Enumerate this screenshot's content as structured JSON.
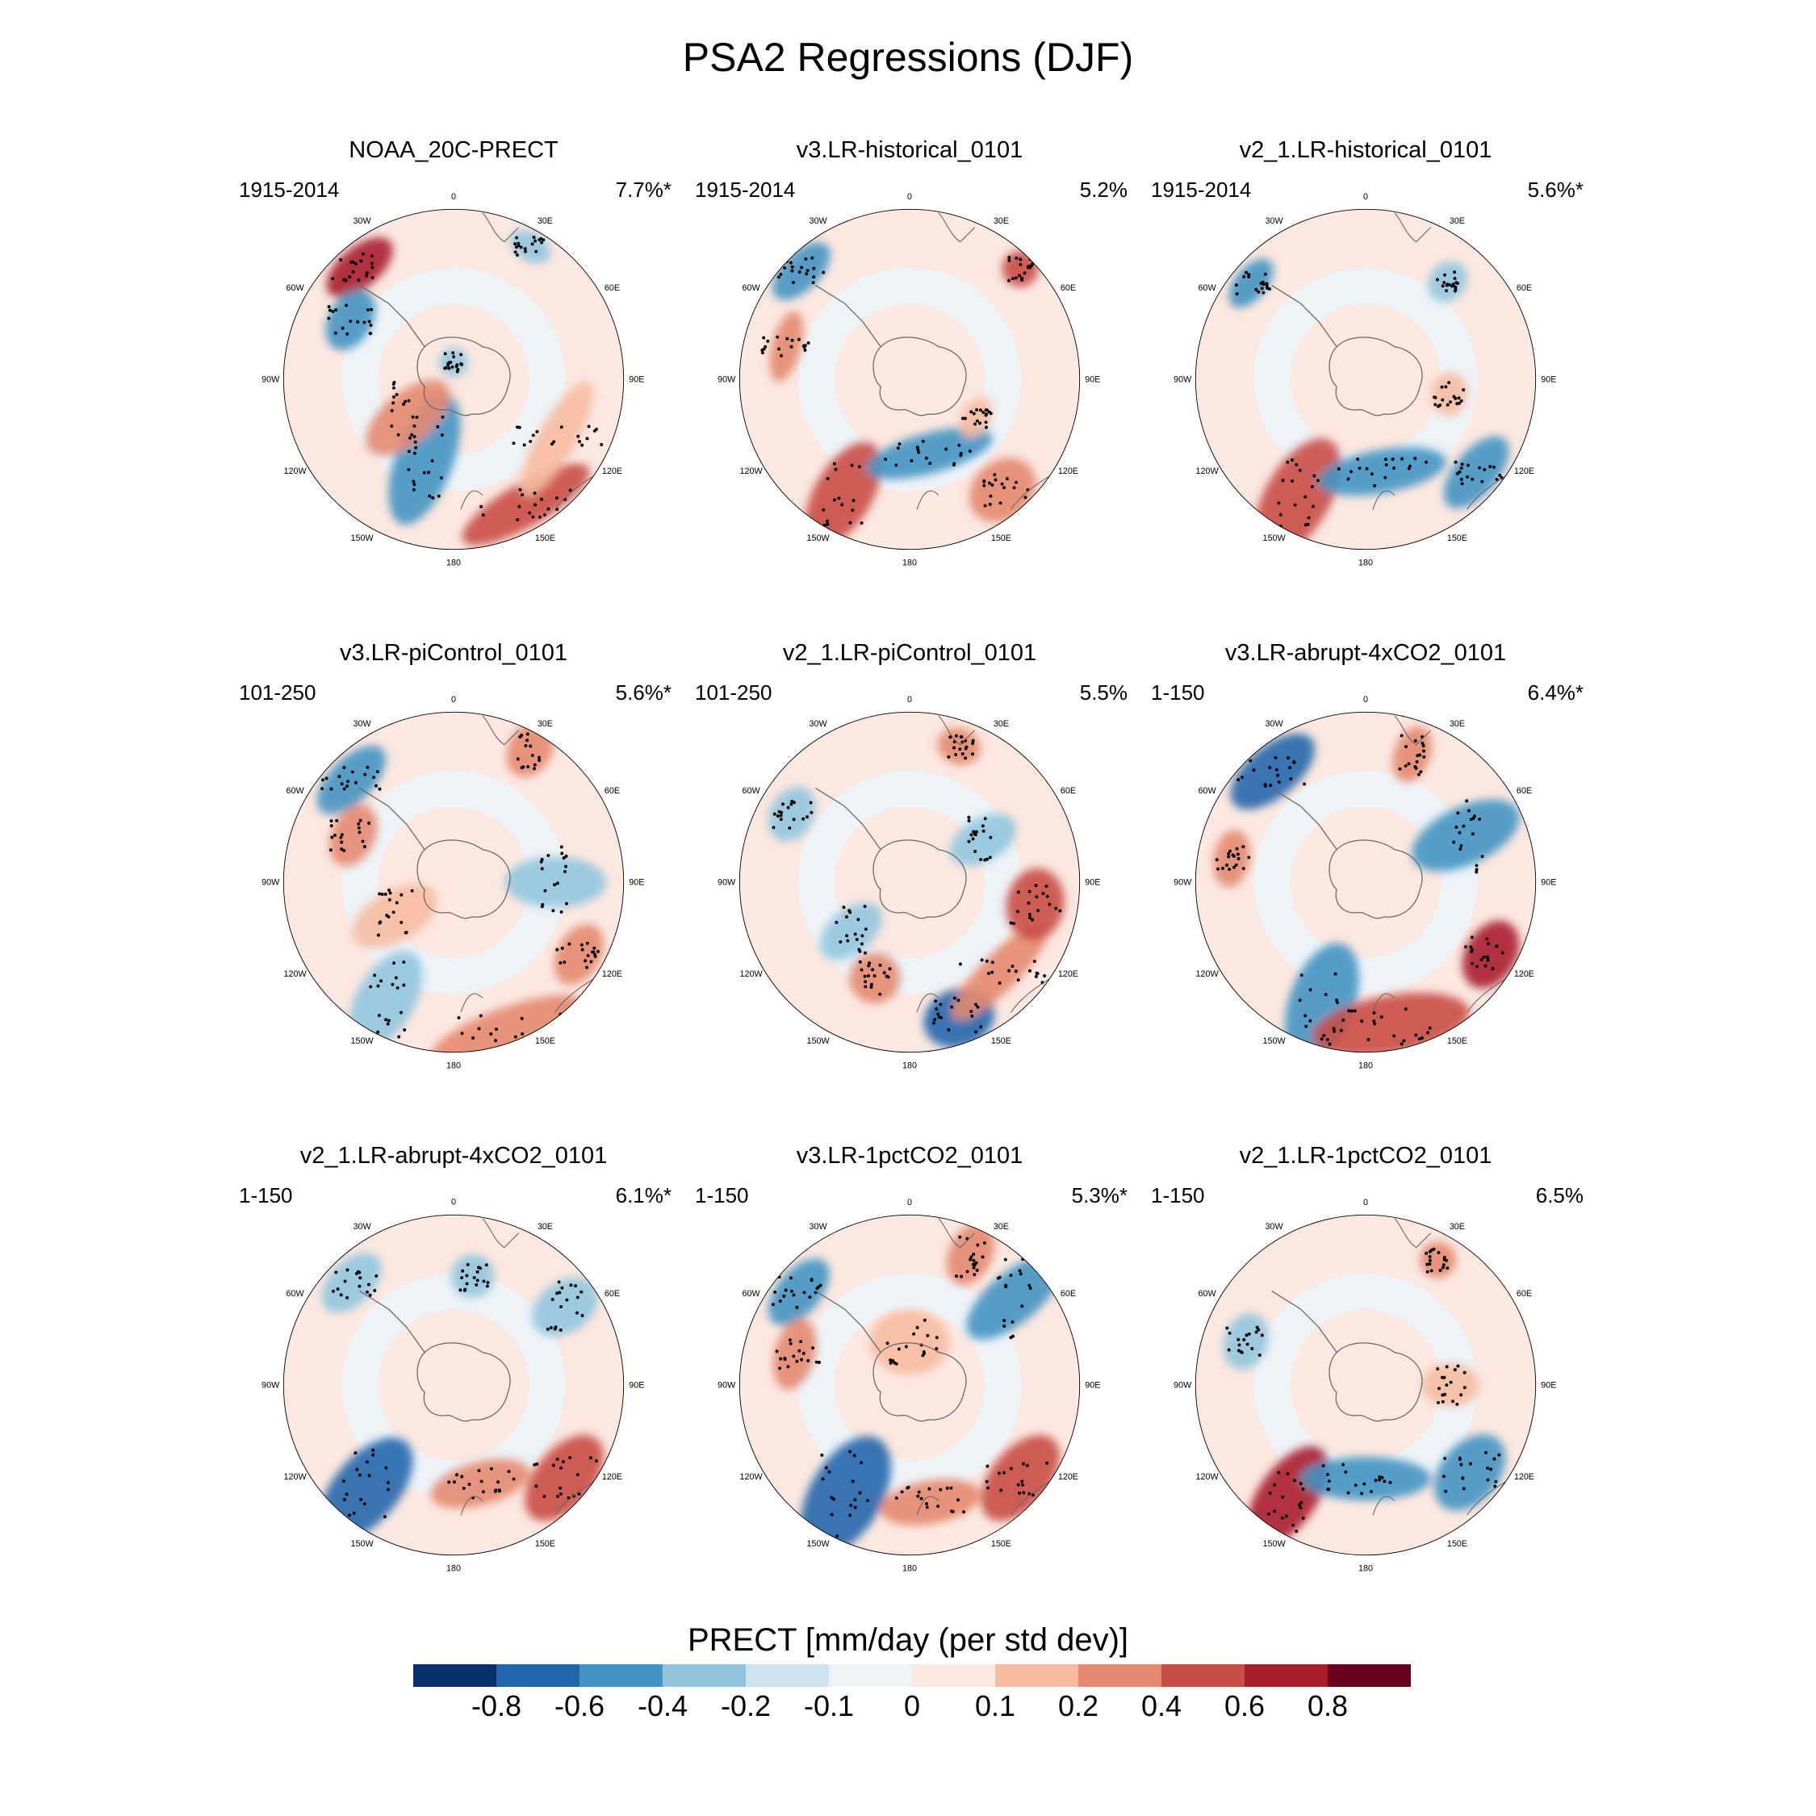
{
  "title": "PSA2 Regressions (DJF)",
  "panels": [
    {
      "title": "NOAA_20C-PRECT",
      "years": "1915-2014",
      "pct": "7.7%*"
    },
    {
      "title": "v3.LR-historical_0101",
      "years": "1915-2014",
      "pct": "5.2%"
    },
    {
      "title": "v2_1.LR-historical_0101",
      "years": "1915-2014",
      "pct": "5.6%*"
    },
    {
      "title": "v3.LR-piControl_0101",
      "years": "101-250",
      "pct": "5.6%*"
    },
    {
      "title": "v2_1.LR-piControl_0101",
      "years": "101-250",
      "pct": "5.5%"
    },
    {
      "title": "v3.LR-abrupt-4xCO2_0101",
      "years": "1-150",
      "pct": "6.4%*"
    },
    {
      "title": "v2_1.LR-abrupt-4xCO2_0101",
      "years": "1-150",
      "pct": "6.1%*"
    },
    {
      "title": "v3.LR-1pctCO2_0101",
      "years": "1-150",
      "pct": "5.3%*"
    },
    {
      "title": "v2_1.LR-1pctCO2_0101",
      "years": "1-150",
      "pct": "6.5%"
    }
  ],
  "lon_labels": [
    "0",
    "30E",
    "60E",
    "90E",
    "120E",
    "150E",
    "180",
    "150W",
    "120W",
    "90W",
    "60W",
    "30W"
  ],
  "colorbar": {
    "title": "PRECT [mm/day (per std dev)]",
    "labels": [
      "-0.8",
      "-0.6",
      "-0.4",
      "-0.2",
      "-0.1",
      "0",
      "0.1",
      "0.2",
      "0.4",
      "0.6",
      "0.8"
    ],
    "colors": [
      "#08306b",
      "#2166ac",
      "#4393c3",
      "#92c5de",
      "#cde3ef",
      "#eef3f7",
      "#fbe8e0",
      "#f6bba1",
      "#e48a70",
      "#c94d47",
      "#a81c2b",
      "#67001f"
    ]
  }
}
